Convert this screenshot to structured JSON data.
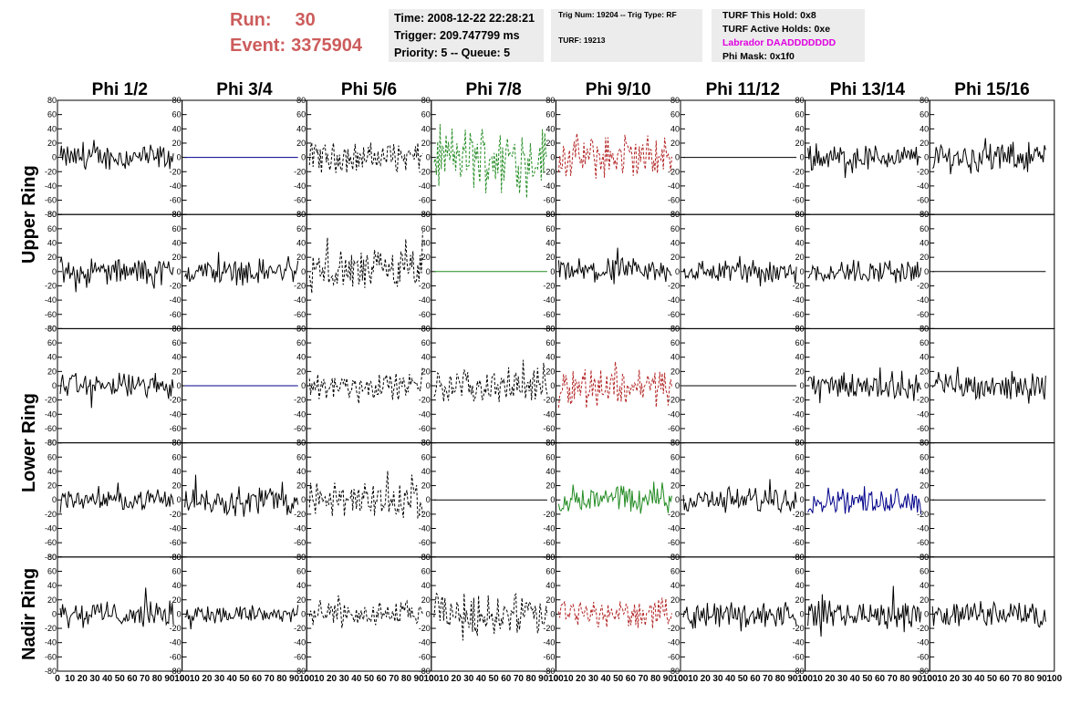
{
  "header": {
    "run_label": "Run:",
    "run_value": "30",
    "event_label": "Event:",
    "event_value": "3375904",
    "time": "Time: 2008-12-22 22:28:21",
    "trigger": "Trigger: 209.747799 ms",
    "priority": "Priority: 5 -- Queue: 5",
    "trig_num": "Trig Num: 19204 -- Trig Type: RF",
    "turf": "TURF: 19213",
    "turf_this_hold": "TURF This Hold: 0x8",
    "turf_active_holds": "TURF Active Holds: 0xe",
    "labrador": "Labrador DAADDDDDDD",
    "phi_mask": "Phi Mask: 0x1f0"
  },
  "colors": {
    "header_red": "#cd5c5c",
    "labrador_magenta": "#e000e0",
    "info_bg": "#ececec",
    "trace_black": "#000000",
    "trace_green": "#228b22",
    "trace_red": "#b22222",
    "trace_blue": "#00008b"
  },
  "chart_data": {
    "type": "line",
    "columns": [
      "Phi 1/2",
      "Phi 3/4",
      "Phi 5/6",
      "Phi 7/8",
      "Phi 9/10",
      "Phi 11/12",
      "Phi 13/14",
      "Phi 15/16"
    ],
    "row_labels": [
      "Upper Ring",
      "Lower Ring",
      "Nadir Ring"
    ],
    "ylim": [
      -80,
      80
    ],
    "y_ticks": [
      "-80",
      "-60",
      "-40",
      "-20",
      "0",
      "20",
      "40",
      "60",
      "80"
    ],
    "xlim": [
      0,
      100
    ],
    "x_ticks": [
      "0",
      "10",
      "20",
      "30",
      "40",
      "50",
      "60",
      "70",
      "80",
      "90",
      "100"
    ],
    "x_tick_label": "0 10 20 30 40 50 60 70 80 90 100",
    "samples": 95,
    "panels": [
      [
        {
          "style": "solid",
          "color": "black",
          "amp": 14
        },
        {
          "style": "flat",
          "color": "blue",
          "amp": 0
        },
        {
          "style": "dashed",
          "color": "black",
          "amp": 16
        },
        {
          "style": "dashed",
          "color": "green",
          "amp": 34
        },
        {
          "style": "dashed",
          "color": "red",
          "amp": 24
        },
        {
          "style": "flat",
          "color": "black",
          "amp": 0
        },
        {
          "style": "solid",
          "color": "black",
          "amp": 14
        },
        {
          "style": "solid",
          "color": "black",
          "amp": 16
        }
      ],
      [
        {
          "style": "solid",
          "color": "black",
          "amp": 14
        },
        {
          "style": "solid",
          "color": "black",
          "amp": 14
        },
        {
          "style": "dashed",
          "color": "black",
          "amp": 24
        },
        {
          "style": "flat",
          "color": "green",
          "amp": 0
        },
        {
          "style": "solid",
          "color": "black",
          "amp": 14
        },
        {
          "style": "solid",
          "color": "black",
          "amp": 13
        },
        {
          "style": "solid",
          "color": "black",
          "amp": 13
        },
        {
          "style": "flat",
          "color": "black",
          "amp": 0
        }
      ],
      [
        {
          "style": "solid",
          "color": "black",
          "amp": 14
        },
        {
          "style": "flat",
          "color": "blue",
          "amp": 0
        },
        {
          "style": "dashed",
          "color": "black",
          "amp": 14
        },
        {
          "style": "dashed",
          "color": "black",
          "amp": 18
        },
        {
          "style": "dashed",
          "color": "red",
          "amp": 22
        },
        {
          "style": "flat",
          "color": "black",
          "amp": 0
        },
        {
          "style": "solid",
          "color": "black",
          "amp": 15
        },
        {
          "style": "solid",
          "color": "black",
          "amp": 15
        }
      ],
      [
        {
          "style": "solid",
          "color": "black",
          "amp": 10
        },
        {
          "style": "solid",
          "color": "black",
          "amp": 16
        },
        {
          "style": "dashed",
          "color": "black",
          "amp": 20
        },
        {
          "style": "flat",
          "color": "black",
          "amp": 0
        },
        {
          "style": "solid",
          "color": "green",
          "amp": 16
        },
        {
          "style": "solid",
          "color": "black",
          "amp": 14
        },
        {
          "style": "solid",
          "color": "blue",
          "amp": 14
        },
        {
          "style": "flat",
          "color": "black",
          "amp": 0
        }
      ],
      [
        {
          "style": "solid",
          "color": "black",
          "amp": 14
        },
        {
          "style": "solid",
          "color": "black",
          "amp": 11
        },
        {
          "style": "dashed",
          "color": "black",
          "amp": 14
        },
        {
          "style": "dashed",
          "color": "black",
          "amp": 22
        },
        {
          "style": "dashed",
          "color": "red",
          "amp": 16
        },
        {
          "style": "solid",
          "color": "black",
          "amp": 14
        },
        {
          "style": "solid",
          "color": "black",
          "amp": 15
        },
        {
          "style": "solid",
          "color": "black",
          "amp": 14
        }
      ]
    ]
  }
}
